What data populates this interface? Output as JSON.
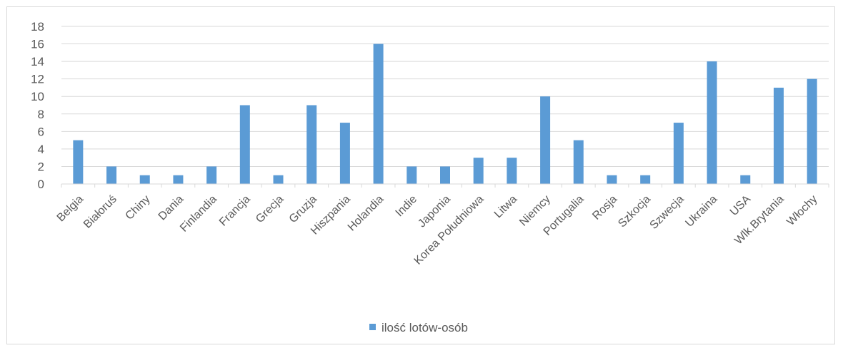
{
  "chart_data": {
    "type": "bar",
    "categories": [
      "Belgia",
      "Białoruś",
      "Chiny",
      "Dania",
      "Finlandia",
      "Francja",
      "Grecja",
      "Gruzja",
      "Hiszpania",
      "Holandia",
      "Indie",
      "Japonia",
      "Korea Południowa",
      "Litwa",
      "Niemcy",
      "Portugalia",
      "Rosja",
      "Szkocja",
      "Szwecja",
      "Ukraina",
      "USA",
      "Wlk.Brytania",
      "Włochy"
    ],
    "series": [
      {
        "name": "ilość lotów-osób",
        "values": [
          5,
          2,
          1,
          1,
          2,
          9,
          1,
          9,
          7,
          16,
          2,
          2,
          3,
          3,
          10,
          5,
          1,
          1,
          7,
          14,
          1,
          11,
          12
        ],
        "color": "#5b9bd5"
      }
    ],
    "title": "",
    "xlabel": "",
    "ylabel": "",
    "ylim": [
      0,
      18
    ],
    "yticks": [
      0,
      2,
      4,
      6,
      8,
      10,
      12,
      14,
      16,
      18
    ],
    "grid": true,
    "legend_position": "bottom"
  }
}
